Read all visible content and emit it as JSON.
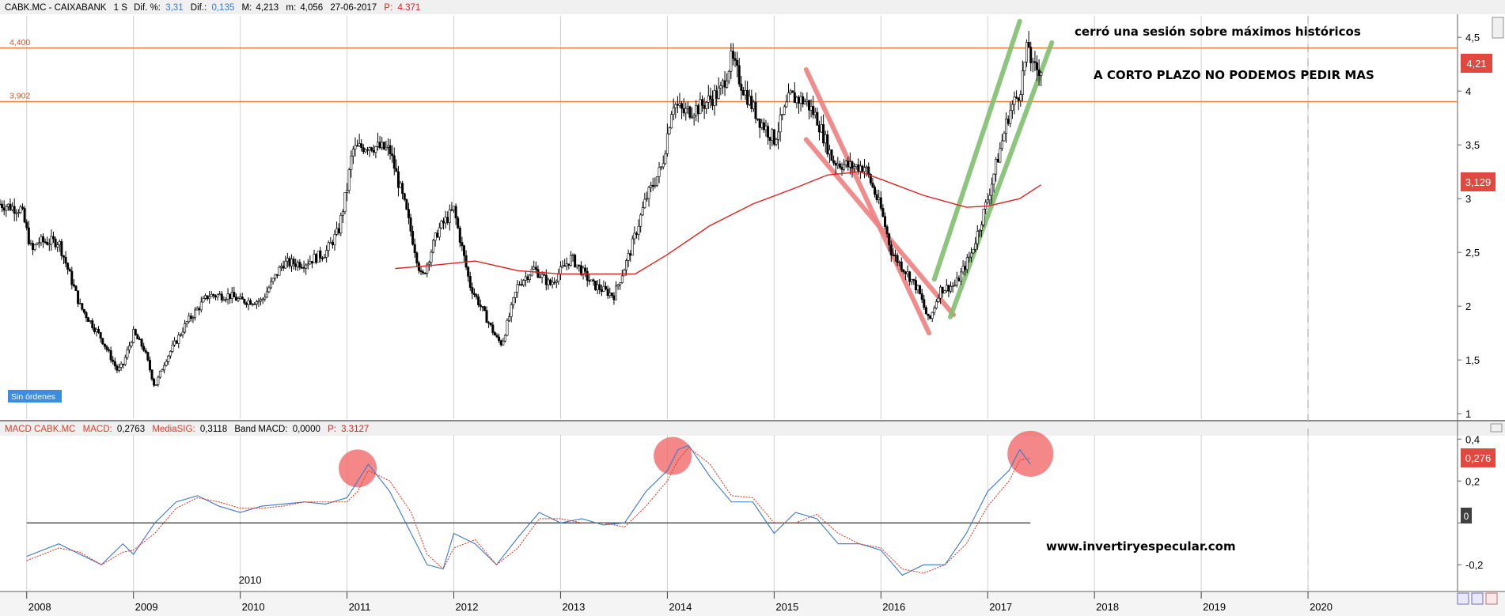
{
  "header": {
    "symbol": "CABK.MC - CAIXABANK",
    "timeframe": "1 S",
    "dif_pct_label": "Dif. %:",
    "dif_pct_value": "3,31",
    "dif_label": "Dif.:",
    "dif_value": "0,135",
    "max_label": "M:",
    "max_value": "4,213",
    "min_label": "m:",
    "min_value": "4,056",
    "date": "27-06-2017",
    "price_label": "P:",
    "price_value": "4.371"
  },
  "macd_header": {
    "name": "MACD CABK.MC",
    "macd_label": "MACD:",
    "macd_value": "0,2763",
    "signal_label": "MediaSIG:",
    "signal_value": "0,3118",
    "band_label": "Band MACD:",
    "band_value": "0,0000",
    "price_label": "P:",
    "price_value": "3.3127"
  },
  "annotations": {
    "note1": "cerró una sesión sobre máximos históricos",
    "note2": "A CORTO PLAZO NO PODEMOS PEDIR MAS",
    "website": "www.invertiryespecular.com",
    "badge": "Sin órdenes"
  },
  "badges": {
    "price_last": "4,21",
    "ma_last": "3,129",
    "macd_last": "0,276",
    "macd_zero": "0"
  },
  "colors": {
    "candle": "#000000",
    "ma": "#e02020",
    "macd_line": "#3a78c8",
    "signal_line": "#e03c28",
    "resistance": "#f08040",
    "down_channel": "#f08080",
    "up_channel": "#80c070",
    "highlight_circle": "#f06060",
    "badge_red": "#e04840",
    "badge_blue": "#3c8ce0"
  },
  "chart_data": [
    {
      "type": "line",
      "panel": "price",
      "ylim": [
        0.95,
        4.7
      ],
      "yticks": [
        1,
        1.5,
        2,
        2.5,
        3,
        3.5,
        4,
        4.5
      ],
      "ytick_labels": [
        "1",
        "1,5",
        "2",
        "2,5",
        "3",
        "3,5",
        "4",
        "4,5"
      ],
      "xlim": [
        2007.75,
        2021.4
      ],
      "xticks": [
        2008,
        2009,
        2010,
        2011,
        2012,
        2013,
        2014,
        2015,
        2016,
        2017,
        2018,
        2019,
        2020
      ],
      "xtick_labels": [
        "2008",
        "2009",
        "2010",
        "2011",
        "2012",
        "2013",
        "2014",
        "2015",
        "2016",
        "2017",
        "2018",
        "2019",
        "2020"
      ],
      "extra_label": "2010",
      "horizontal_lines": [
        {
          "label": "4,400",
          "y": 4.4
        },
        {
          "label": "3,902",
          "y": 3.902
        }
      ],
      "price_series": {
        "x": [
          2007.75,
          2007.95,
          2008.05,
          2008.1,
          2008.3,
          2008.5,
          2008.7,
          2008.85,
          2008.9,
          2009.0,
          2009.1,
          2009.2,
          2009.3,
          2009.5,
          2009.7,
          2009.9,
          2010.0,
          2010.2,
          2010.4,
          2010.6,
          2010.8,
          2010.92,
          2011.0,
          2011.05,
          2011.2,
          2011.4,
          2011.55,
          2011.7,
          2011.85,
          2012.0,
          2012.15,
          2012.3,
          2012.4,
          2012.45,
          2012.6,
          2012.75,
          2012.9,
          2013.1,
          2013.3,
          2013.5,
          2013.65,
          2013.8,
          2013.95,
          2014.05,
          2014.15,
          2014.3,
          2014.5,
          2014.6,
          2014.7,
          2014.85,
          2015.0,
          2015.15,
          2015.3,
          2015.4,
          2015.55,
          2015.7,
          2015.85,
          2016.0,
          2016.1,
          2016.25,
          2016.35,
          2016.45,
          2016.55,
          2016.7,
          2016.85,
          2017.0,
          2017.1,
          2017.2,
          2017.3,
          2017.38,
          2017.42,
          2017.5
        ],
        "y": [
          2.95,
          2.9,
          2.5,
          2.6,
          2.6,
          2.0,
          1.7,
          1.4,
          1.45,
          1.75,
          1.6,
          1.25,
          1.5,
          1.85,
          2.1,
          2.1,
          2.05,
          2.05,
          2.4,
          2.4,
          2.5,
          2.7,
          3.1,
          3.45,
          3.5,
          3.45,
          2.9,
          2.25,
          2.7,
          2.9,
          2.2,
          1.9,
          1.7,
          1.65,
          2.2,
          2.35,
          2.2,
          2.45,
          2.2,
          2.1,
          2.5,
          3.0,
          3.3,
          3.9,
          3.8,
          3.85,
          4.0,
          4.3,
          4.05,
          3.75,
          3.55,
          3.95,
          3.9,
          3.75,
          3.35,
          3.3,
          3.3,
          2.9,
          2.5,
          2.3,
          2.15,
          1.85,
          2.15,
          2.2,
          2.5,
          3.0,
          3.4,
          3.8,
          4.0,
          4.45,
          4.2,
          4.21
        ]
      },
      "ma_series": {
        "x": [
          2011.45,
          2011.8,
          2012.2,
          2012.6,
          2013.0,
          2013.4,
          2013.7,
          2014.0,
          2014.4,
          2014.8,
          2015.2,
          2015.5,
          2015.8,
          2016.0,
          2016.4,
          2016.8,
          2017.0,
          2017.3,
          2017.5
        ],
        "y": [
          2.35,
          2.38,
          2.42,
          2.33,
          2.3,
          2.3,
          2.3,
          2.48,
          2.75,
          2.95,
          3.1,
          3.22,
          3.25,
          3.18,
          3.03,
          2.92,
          2.93,
          3.0,
          3.129
        ]
      },
      "channels": [
        {
          "color": "down",
          "x": [
            2015.3,
            2016.45
          ],
          "y": [
            4.2,
            1.75
          ]
        },
        {
          "color": "down",
          "x": [
            2015.3,
            2016.68
          ],
          "y": [
            3.55,
            1.92
          ]
        },
        {
          "color": "up",
          "x": [
            2016.5,
            2017.3
          ],
          "y": [
            2.25,
            4.65
          ]
        },
        {
          "color": "up",
          "x": [
            2016.65,
            2017.6
          ],
          "y": [
            1.9,
            4.45
          ]
        }
      ]
    },
    {
      "type": "line",
      "panel": "macd",
      "ylim": [
        -0.32,
        0.42
      ],
      "yticks": [
        -0.2,
        0,
        0.2,
        0.4
      ],
      "ytick_labels": [
        "-0,2",
        "0",
        "0,2",
        "0,4"
      ],
      "xlim": [
        2007.75,
        2021.4
      ],
      "zero_line": {
        "x": [
          2008.0,
          2017.4
        ],
        "y": [
          0,
          0
        ]
      },
      "series": [
        {
          "name": "MACD",
          "x": [
            2008.0,
            2008.3,
            2008.5,
            2008.7,
            2008.9,
            2009.0,
            2009.2,
            2009.4,
            2009.6,
            2009.8,
            2010.0,
            2010.2,
            2010.4,
            2010.6,
            2010.8,
            2011.0,
            2011.1,
            2011.2,
            2011.4,
            2011.6,
            2011.75,
            2011.9,
            2012.0,
            2012.2,
            2012.4,
            2012.6,
            2012.8,
            2013.0,
            2013.2,
            2013.4,
            2013.6,
            2013.8,
            2014.0,
            2014.1,
            2014.2,
            2014.4,
            2014.6,
            2014.8,
            2015.0,
            2015.2,
            2015.4,
            2015.6,
            2015.8,
            2016.0,
            2016.2,
            2016.4,
            2016.6,
            2016.8,
            2017.0,
            2017.2,
            2017.3,
            2017.4
          ],
          "y": [
            -0.16,
            -0.1,
            -0.15,
            -0.2,
            -0.1,
            -0.15,
            0.0,
            0.1,
            0.13,
            0.08,
            0.05,
            0.08,
            0.09,
            0.1,
            0.09,
            0.12,
            0.2,
            0.28,
            0.15,
            -0.05,
            -0.2,
            -0.22,
            -0.05,
            -0.1,
            -0.2,
            -0.07,
            0.05,
            0.0,
            0.02,
            -0.01,
            0.0,
            0.15,
            0.25,
            0.35,
            0.37,
            0.22,
            0.1,
            0.1,
            -0.05,
            0.05,
            0.02,
            -0.1,
            -0.1,
            -0.13,
            -0.25,
            -0.2,
            -0.2,
            -0.05,
            0.15,
            0.25,
            0.35,
            0.28
          ]
        },
        {
          "name": "MediaSIG",
          "x": [
            2008.0,
            2008.3,
            2008.5,
            2008.7,
            2008.9,
            2009.0,
            2009.2,
            2009.4,
            2009.6,
            2009.8,
            2010.0,
            2010.2,
            2010.4,
            2010.6,
            2010.8,
            2011.0,
            2011.1,
            2011.2,
            2011.4,
            2011.6,
            2011.75,
            2011.9,
            2012.0,
            2012.2,
            2012.4,
            2012.6,
            2012.8,
            2013.0,
            2013.2,
            2013.4,
            2013.6,
            2013.8,
            2014.0,
            2014.1,
            2014.2,
            2014.4,
            2014.6,
            2014.8,
            2015.0,
            2015.2,
            2015.4,
            2015.6,
            2015.8,
            2016.0,
            2016.2,
            2016.4,
            2016.6,
            2016.8,
            2017.0,
            2017.2,
            2017.3,
            2017.4
          ],
          "y": [
            -0.18,
            -0.12,
            -0.14,
            -0.2,
            -0.14,
            -0.13,
            -0.05,
            0.07,
            0.12,
            0.1,
            0.07,
            0.07,
            0.08,
            0.1,
            0.1,
            0.1,
            0.15,
            0.25,
            0.2,
            0.05,
            -0.15,
            -0.22,
            -0.12,
            -0.08,
            -0.2,
            -0.12,
            0.02,
            0.02,
            0.0,
            0.0,
            -0.02,
            0.08,
            0.2,
            0.3,
            0.36,
            0.28,
            0.13,
            0.12,
            0.0,
            0.0,
            0.04,
            -0.05,
            -0.1,
            -0.12,
            -0.22,
            -0.24,
            -0.2,
            -0.1,
            0.08,
            0.2,
            0.3,
            0.31
          ]
        }
      ],
      "highlights": [
        {
          "x": 2011.1,
          "y": 0.26
        },
        {
          "x": 2014.05,
          "y": 0.32
        },
        {
          "x": 2017.4,
          "y": 0.33
        }
      ]
    }
  ]
}
